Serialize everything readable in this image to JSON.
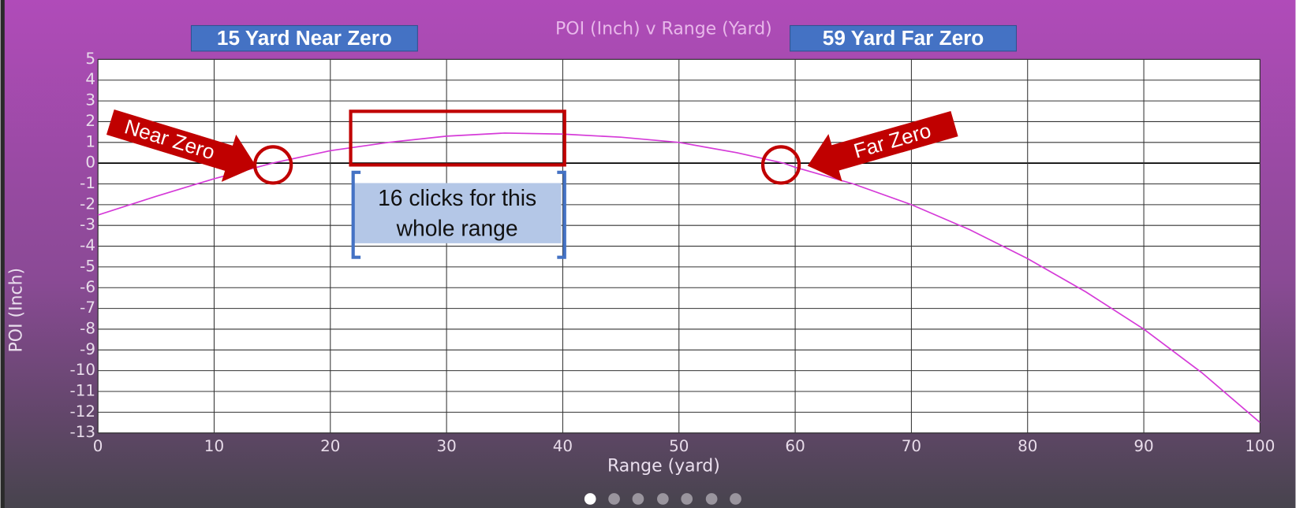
{
  "chart_data": {
    "type": "line",
    "title": "POI (Inch) v Range (Yard)",
    "x_label": "Range (yard)",
    "y_label": "POI (Inch)",
    "x": [
      0,
      5,
      10,
      15,
      20,
      25,
      30,
      35,
      40,
      45,
      50,
      55,
      59,
      60,
      65,
      70,
      75,
      80,
      85,
      90,
      95,
      100
    ],
    "series": [
      {
        "name": "POI",
        "color": "#d53ad8",
        "values": [
          -2.5,
          -1.6,
          -0.75,
          0,
          0.6,
          1.0,
          1.3,
          1.45,
          1.4,
          1.25,
          1.0,
          0.5,
          0,
          -0.2,
          -1.0,
          -2.0,
          -3.2,
          -4.6,
          -6.2,
          -8.0,
          -10.1,
          -12.5
        ]
      }
    ],
    "xlim": [
      0,
      100
    ],
    "xticks": [
      0,
      10,
      20,
      30,
      40,
      50,
      60,
      70,
      80,
      90,
      100
    ],
    "ylim": [
      -13,
      5
    ],
    "yticks": [
      -13,
      -12,
      -11,
      -10,
      -9,
      -8,
      -7,
      -6,
      -5,
      -4,
      -3,
      -2,
      -1,
      0,
      1,
      2,
      3,
      4,
      5
    ],
    "grid": true
  },
  "annotations": {
    "near_zero_header": "15 Yard Near Zero",
    "far_zero_header": "59 Yard Far Zero",
    "near_zero_arrow": "Near Zero",
    "far_zero_arrow": "Far Zero",
    "clicks_note": [
      "16 clicks for this",
      "whole range"
    ]
  }
}
